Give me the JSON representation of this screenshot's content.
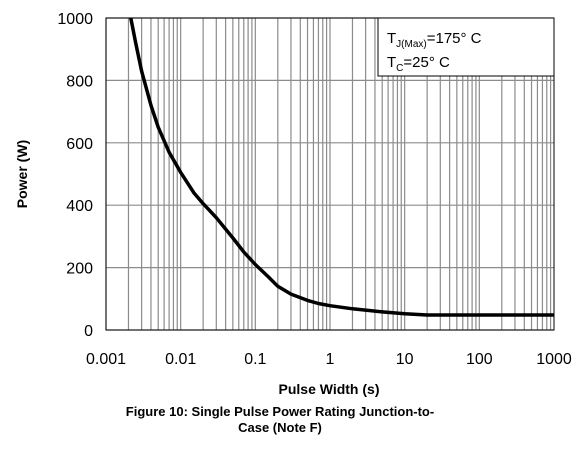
{
  "chart_data": {
    "type": "line",
    "xlabel": "Pulse Width (s)",
    "ylabel": "Power (W)",
    "xscale": "log",
    "xlim": [
      0.001,
      1000
    ],
    "ylim": [
      0,
      1000
    ],
    "x_ticks": [
      "0.001",
      "0.01",
      "0.1",
      "1",
      "10",
      "100",
      "1000"
    ],
    "y_ticks": [
      "0",
      "200",
      "400",
      "600",
      "800",
      "1000"
    ],
    "grid": true,
    "series": [
      {
        "x": [
          0.00215,
          0.0025,
          0.003,
          0.004,
          0.005,
          0.007,
          0.01,
          0.015,
          0.02,
          0.03,
          0.05,
          0.07,
          0.1,
          0.15,
          0.2,
          0.3,
          0.5,
          0.7,
          1,
          2,
          5,
          10,
          20,
          50,
          100,
          1000
        ],
        "y": [
          1000,
          920,
          830,
          720,
          650,
          570,
          505,
          440,
          405,
          360,
          295,
          250,
          210,
          170,
          140,
          115,
          95,
          85,
          78,
          68,
          58,
          52,
          48,
          48,
          48,
          48
        ],
        "color": "#000000"
      }
    ],
    "annotations": {
      "tj": {
        "t": "T",
        "sub": "J(Max)",
        "rest": "=175° C"
      },
      "tc": {
        "t": "T",
        "sub": "C",
        "rest": "=25° C"
      }
    }
  },
  "caption": {
    "line1": "Figure 10: Single Pulse Power Rating Junction-to-",
    "line2": "Case (Note F)"
  }
}
